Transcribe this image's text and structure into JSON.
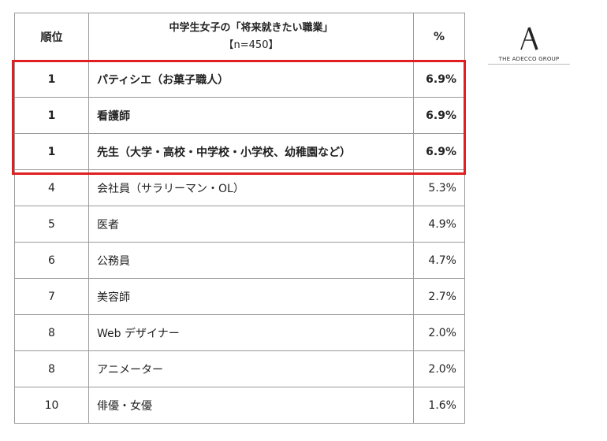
{
  "table": {
    "header": {
      "rank": "順位",
      "title": "中学生女子の「将来就きたい職業」",
      "sample": "【n=450】",
      "percent": "%"
    },
    "rows": [
      {
        "rank": "1",
        "job": "パティシエ（お菓子職人）",
        "percent": "6.9%"
      },
      {
        "rank": "1",
        "job": "看護師",
        "percent": "6.9%"
      },
      {
        "rank": "1",
        "job": "先生（大学・高校・中学校・小学校、幼稚園など）",
        "percent": "6.9%"
      },
      {
        "rank": "4",
        "job": "会社員（サラリーマン・OL）",
        "percent": "5.3%"
      },
      {
        "rank": "5",
        "job": "医者",
        "percent": "4.9%"
      },
      {
        "rank": "6",
        "job": "公務員",
        "percent": "4.7%"
      },
      {
        "rank": "7",
        "job": "美容師",
        "percent": "2.7%"
      },
      {
        "rank": "8",
        "job": "Web デザイナー",
        "percent": "2.0%"
      },
      {
        "rank": "8",
        "job": "アニメーター",
        "percent": "2.0%"
      },
      {
        "rank": "10",
        "job": "俳優・女優",
        "percent": "1.6%"
      }
    ],
    "highlight_color": "#e02020"
  },
  "logo": {
    "text": "THE ADECCO GROUP"
  }
}
